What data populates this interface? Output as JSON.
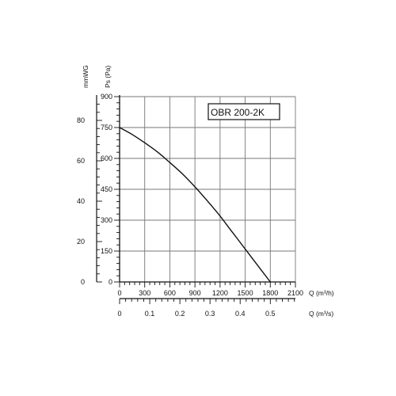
{
  "chart_data": {
    "type": "line",
    "label_box": "OBR 200-2K",
    "y_axis_ps": {
      "label": "Ps (Pa)",
      "ticks": [
        0,
        150,
        300,
        450,
        600,
        750,
        900
      ],
      "range": [
        0,
        900
      ]
    },
    "y_axis_mmwg": {
      "label": "mmWG",
      "ticks": [
        0,
        20,
        40,
        60,
        80
      ],
      "range": [
        0,
        91.8
      ]
    },
    "x_axis_m3h": {
      "label": "Q (m³/h)",
      "ticks": [
        0,
        300,
        600,
        900,
        1200,
        1500,
        1800,
        2100
      ],
      "range": [
        0,
        2100
      ]
    },
    "x_axis_m3s": {
      "label": "Q (m³/s)",
      "ticks": [
        "0",
        "0.1",
        "0.2",
        "0.3",
        "0.4",
        "0.5"
      ],
      "tick_values_m3h": [
        0,
        360,
        720,
        1080,
        1440,
        1800
      ]
    },
    "grid": true,
    "series": [
      {
        "x": [
          0,
          150,
          300,
          450,
          600,
          750,
          900,
          1050,
          1200,
          1350,
          1500,
          1650,
          1800
        ],
        "y": [
          750,
          716,
          676,
          632,
          580,
          525,
          462,
          393,
          320,
          240,
          160,
          80,
          0
        ]
      }
    ]
  }
}
